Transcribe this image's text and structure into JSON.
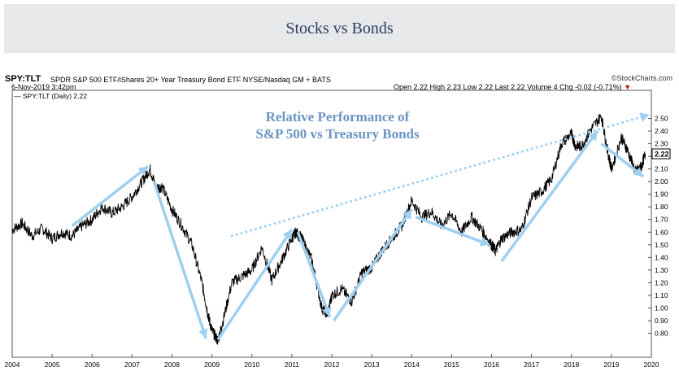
{
  "banner": {
    "title": "Stocks vs Bonds"
  },
  "header": {
    "symbol": "SPY:TLT",
    "description": "SPDR S&P 500 ETF/iShares 20+ Year Treasury Bond ETF  NYSE/Nasdaq GM + BATS",
    "date": "6-Nov-2019 3:42pm",
    "watermark": "©StockCharts.com",
    "quote": "Open 2.22  High 2.23  Low 2.22  Last 2.22  Volume 4  Chg -0.02 (-0.71%)",
    "legend": "SPY:TLT (Daily) 2.22",
    "last_value": "2.22"
  },
  "chart_data": {
    "type": "line",
    "title": "Relative Performance of\nS&P 500 vs Treasury Bonds",
    "series": [
      {
        "name": "SPY:TLT (Daily)",
        "color": "#000000",
        "x": [
          2004.0,
          2004.25,
          2004.5,
          2004.75,
          2005.0,
          2005.25,
          2005.5,
          2005.75,
          2006.0,
          2006.25,
          2006.5,
          2006.75,
          2007.0,
          2007.25,
          2007.45,
          2007.6,
          2007.75,
          2008.0,
          2008.25,
          2008.5,
          2008.75,
          2008.9,
          2009.0,
          2009.15,
          2009.25,
          2009.5,
          2009.75,
          2010.0,
          2010.25,
          2010.5,
          2010.75,
          2011.0,
          2011.1,
          2011.25,
          2011.5,
          2011.75,
          2011.9,
          2012.0,
          2012.25,
          2012.5,
          2012.75,
          2013.0,
          2013.25,
          2013.5,
          2013.75,
          2014.0,
          2014.25,
          2014.5,
          2014.75,
          2015.0,
          2015.25,
          2015.5,
          2015.75,
          2016.0,
          2016.1,
          2016.25,
          2016.5,
          2016.75,
          2017.0,
          2017.25,
          2017.5,
          2017.75,
          2018.0,
          2018.1,
          2018.25,
          2018.5,
          2018.75,
          2018.9,
          2019.0,
          2019.25,
          2019.4,
          2019.6,
          2019.75,
          2019.85
        ],
        "y": [
          1.62,
          1.67,
          1.57,
          1.63,
          1.55,
          1.6,
          1.57,
          1.65,
          1.7,
          1.8,
          1.75,
          1.8,
          1.88,
          2.0,
          2.1,
          1.95,
          1.96,
          1.78,
          1.65,
          1.5,
          1.2,
          0.95,
          0.82,
          0.74,
          0.86,
          1.2,
          1.25,
          1.3,
          1.48,
          1.22,
          1.38,
          1.55,
          1.6,
          1.55,
          1.38,
          1.0,
          0.95,
          1.1,
          1.15,
          1.05,
          1.28,
          1.32,
          1.45,
          1.55,
          1.65,
          1.85,
          1.72,
          1.76,
          1.65,
          1.75,
          1.6,
          1.72,
          1.62,
          1.5,
          1.45,
          1.55,
          1.6,
          1.62,
          1.87,
          1.92,
          2.02,
          2.3,
          2.38,
          2.28,
          2.28,
          2.42,
          2.52,
          2.25,
          2.1,
          2.35,
          2.25,
          2.08,
          2.12,
          2.22
        ]
      }
    ],
    "trend_arrows": [
      {
        "x0": 2005.5,
        "y0": 1.65,
        "x1": 2007.4,
        "y1": 2.12,
        "style": "solid"
      },
      {
        "x0": 2007.55,
        "y0": 2.0,
        "x1": 2008.85,
        "y1": 0.76,
        "style": "solid"
      },
      {
        "x0": 2009.15,
        "y0": 0.75,
        "x1": 2011.0,
        "y1": 1.62,
        "style": "solid"
      },
      {
        "x0": 2011.15,
        "y0": 1.6,
        "x1": 2011.95,
        "y1": 0.93,
        "style": "solid"
      },
      {
        "x0": 2012.05,
        "y0": 0.9,
        "x1": 2014.0,
        "y1": 1.78,
        "style": "solid"
      },
      {
        "x0": 2014.1,
        "y0": 1.72,
        "x1": 2015.95,
        "y1": 1.5,
        "style": "solid"
      },
      {
        "x0": 2016.25,
        "y0": 1.37,
        "x1": 2018.65,
        "y1": 2.4,
        "style": "solid"
      },
      {
        "x0": 2018.75,
        "y0": 2.3,
        "x1": 2019.8,
        "y1": 2.04,
        "style": "solid"
      },
      {
        "x0": 2009.5,
        "y0": 1.57,
        "x1": 2019.95,
        "y1": 2.53,
        "style": "dotted"
      }
    ],
    "xlim": [
      2004.0,
      2020.0
    ],
    "ylim": [
      0.7,
      2.6
    ],
    "x_ticks": [
      "2004",
      "2005",
      "2006",
      "2007",
      "2008",
      "2009",
      "2010",
      "2011",
      "2012",
      "2013",
      "2014",
      "2015",
      "2016",
      "2017",
      "2018",
      "2019",
      "2020"
    ],
    "y_ticks": [
      "0.80",
      "0.90",
      "1.00",
      "1.10",
      "1.20",
      "1.30",
      "1.40",
      "1.50",
      "1.60",
      "1.70",
      "1.80",
      "1.90",
      "2.00",
      "2.10",
      "2.20",
      "2.30",
      "2.40",
      "2.50"
    ],
    "arrow_color": "#9fd0f0",
    "annotation_color": "#6a94c4",
    "grid": false
  }
}
